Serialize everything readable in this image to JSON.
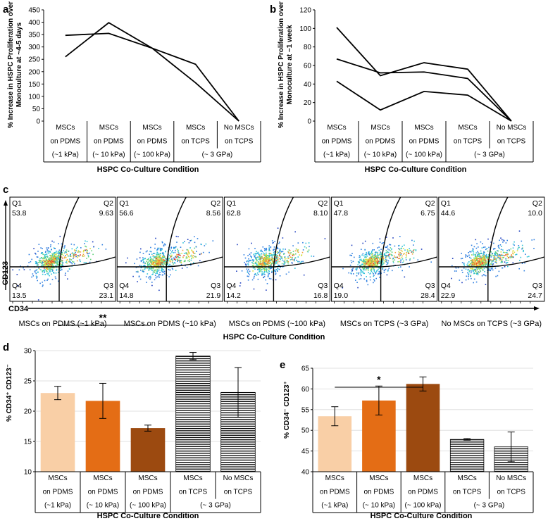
{
  "panels": {
    "a": {
      "label": "a",
      "ylabel_line1": "% Increase in HSPC Proliferation over",
      "ylabel_line2": "Monoculture at ~4-5 days",
      "xlabel": "HSPC Co-Culture Condition"
    },
    "b": {
      "label": "b",
      "ylabel_line1": "% Increase in HSPC Proliferation over",
      "ylabel_line2": "Monoculture at ~1 week",
      "xlabel": "HSPC Co-Culture Condition"
    },
    "c": {
      "label": "c",
      "y_marker": "CD123",
      "x_marker": "CD34",
      "xlabel": "HSPC Co-Culture Condition"
    },
    "d": {
      "label": "d",
      "ylabel": "% CD34⁺ CD123⁻",
      "xlabel": "HSPC Co-Culture Condition",
      "significance": "**"
    },
    "e": {
      "label": "e",
      "ylabel": "% CD34⁻ CD123⁺",
      "xlabel": "HSPC Co-Culture Condition",
      "significance": "*"
    }
  },
  "categories": [
    {
      "l1": "MSCs",
      "l2": "on PDMS",
      "l3": "(~1 kPa)"
    },
    {
      "l1": "MSCs",
      "l2": "on PDMS",
      "l3": "(~ 10 kPa)"
    },
    {
      "l1": "MSCs",
      "l2": "on PDMS",
      "l3": "(~ 100 kPa)"
    },
    {
      "l1": "MSCs",
      "l2": "on TCPS",
      "l3": "(~ 3 GPa)"
    },
    {
      "l1": "No MSCs",
      "l2": "on TCPS",
      "l3": ""
    }
  ],
  "colors": {
    "soft": "#f9cfa6",
    "medium": "#e46d15",
    "stiff": "#9c4a10",
    "hatch": "#000000"
  },
  "flow": [
    {
      "condition": "MSCs on PDMS (~1 kPa)",
      "q1": "53.8",
      "q2": "9.63",
      "q3": "23.1",
      "q4": "13.5"
    },
    {
      "condition": "MSCs on PDMS (~10 kPa)",
      "q1": "56.6",
      "q2": "8.56",
      "q3": "21.9",
      "q4": "14.8"
    },
    {
      "condition": "MSCs on PDMS (~100 kPa)",
      "q1": "62.8",
      "q2": "8.10",
      "q3": "16.8",
      "q4": "14.2"
    },
    {
      "condition": "MSCs on TCPS (~3 GPa)",
      "q1": "47.8",
      "q2": "6.75",
      "q3": "28.4",
      "q4": "19.0"
    },
    {
      "condition": "No MSCs on TCPS (~3 GPa)",
      "q1": "44.6",
      "q2": "10.0",
      "q3": "24.7",
      "q4": "22.9"
    }
  ],
  "quadrant_names": {
    "q1": "Q1",
    "q2": "Q2",
    "q3": "Q3",
    "q4": "Q4"
  },
  "chart_data": [
    {
      "panel": "a",
      "type": "line",
      "ylim": [
        0,
        450
      ],
      "yticks": [
        0,
        50,
        100,
        150,
        200,
        250,
        300,
        350,
        400,
        450
      ],
      "grid": false,
      "series": [
        {
          "values": [
            260,
            398,
            295,
            230,
            0
          ]
        },
        {
          "values": [
            347,
            355,
            295,
            155,
            0
          ]
        }
      ]
    },
    {
      "panel": "b",
      "type": "line",
      "ylim": [
        0,
        120
      ],
      "yticks": [
        0,
        20,
        40,
        60,
        80,
        100,
        120
      ],
      "grid": false,
      "series": [
        {
          "values": [
            101,
            49,
            63,
            56,
            0
          ]
        },
        {
          "values": [
            67,
            52,
            53,
            46,
            0
          ]
        },
        {
          "values": [
            43,
            12,
            32,
            28,
            0
          ]
        }
      ]
    },
    {
      "panel": "d",
      "type": "bar",
      "ylim": [
        10,
        30
      ],
      "yticks": [
        10,
        15,
        20,
        25,
        30
      ],
      "grid": true,
      "values": [
        23.0,
        21.7,
        17.2,
        29.1,
        23.1
      ],
      "errors": [
        1.1,
        2.9,
        0.5,
        0.6,
        4.1
      ],
      "fills": [
        "soft",
        "medium",
        "stiff",
        "hatch",
        "hatch"
      ],
      "bracket": [
        0,
        2
      ]
    },
    {
      "panel": "e",
      "type": "bar",
      "ylim": [
        40,
        65
      ],
      "yticks": [
        40,
        45,
        50,
        55,
        60,
        65
      ],
      "grid": true,
      "values": [
        53.4,
        57.2,
        61.2,
        47.8,
        46.0
      ],
      "errors": [
        2.3,
        3.5,
        1.7,
        0.2,
        3.6
      ],
      "fills": [
        "soft",
        "medium",
        "stiff",
        "hatch",
        "hatch"
      ],
      "bracket": [
        0,
        2
      ]
    }
  ]
}
